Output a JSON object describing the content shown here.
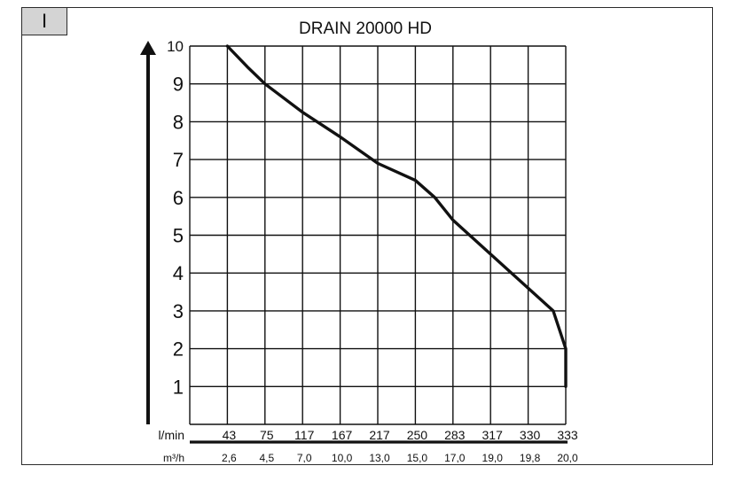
{
  "panel_label": "I",
  "chart_data": {
    "type": "line",
    "title": "DRAIN 20000 HD",
    "y_ticks": [
      "1",
      "2",
      "3",
      "4",
      "5",
      "6",
      "7",
      "8",
      "9",
      "10"
    ],
    "ylim": [
      0,
      10
    ],
    "x_rows": [
      {
        "unit_label": "l/min",
        "ticks": [
          "43",
          "75",
          "117",
          "167",
          "217",
          "250",
          "283",
          "317",
          "330",
          "333"
        ]
      },
      {
        "unit_label": "m³/h",
        "ticks": [
          "2,6",
          "4,5",
          "7,0",
          "10,0",
          "13,0",
          "15,0",
          "17,0",
          "19,0",
          "19,8",
          "20,0"
        ]
      }
    ],
    "series": [
      {
        "values": [
          {
            "x": 43,
            "y": 10
          },
          {
            "x": 60,
            "y": 9.45
          },
          {
            "x": 75,
            "y": 9.0
          },
          {
            "x": 117,
            "y": 8.25
          },
          {
            "x": 167,
            "y": 7.6
          },
          {
            "x": 217,
            "y": 6.9
          },
          {
            "x": 250,
            "y": 6.45
          },
          {
            "x": 267,
            "y": 6.0
          },
          {
            "x": 283,
            "y": 5.4
          },
          {
            "x": 317,
            "y": 4.5
          },
          {
            "x": 330,
            "y": 3.6
          },
          {
            "x": 332,
            "y": 3.0
          },
          {
            "x": 333,
            "y": 2.0
          },
          {
            "x": 333,
            "y": 1.0
          }
        ]
      }
    ],
    "grid": true,
    "colors": {
      "line": "#111111",
      "grid": "#111111",
      "panel_tag": "#d4d4d4"
    }
  }
}
